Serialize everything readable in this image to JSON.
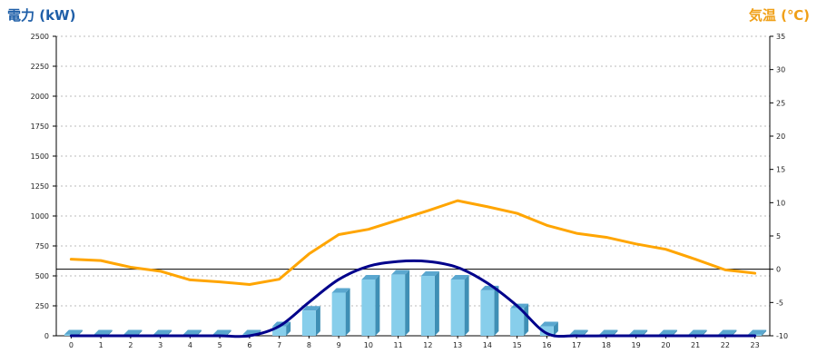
{
  "chart_data": {
    "type": "bar",
    "title": "",
    "y_left_label": "電力 (kW)",
    "y_right_label": "気温 (℃)",
    "categories": [
      "0",
      "1",
      "2",
      "3",
      "4",
      "5",
      "6",
      "7",
      "8",
      "9",
      "10",
      "11",
      "12",
      "13",
      "14",
      "15",
      "16",
      "17",
      "18",
      "19",
      "20",
      "21",
      "22",
      "23"
    ],
    "y_left_ticks": [
      "0",
      "250",
      "500",
      "750",
      "1000",
      "1250",
      "1500",
      "1750",
      "2000",
      "2250",
      "2500"
    ],
    "y_right_ticks": [
      "-10",
      "-5",
      "0",
      "5",
      "10",
      "15",
      "20",
      "25",
      "30",
      "35"
    ],
    "ylim_left": [
      0,
      2500
    ],
    "ylim_right": [
      -10,
      35
    ],
    "grid": true,
    "series": [
      {
        "kind": "bar",
        "axis": "left",
        "color": "#87ceeb",
        "values": [
          0,
          0,
          0,
          0,
          0,
          0,
          0,
          80,
          210,
          360,
          470,
          510,
          500,
          470,
          380,
          230,
          80,
          0,
          0,
          0,
          0,
          0,
          0,
          0
        ]
      },
      {
        "kind": "line",
        "axis": "left",
        "color": "#00008b",
        "values": [
          0,
          0,
          0,
          0,
          0,
          0,
          0,
          80,
          280,
          470,
          580,
          620,
          620,
          570,
          440,
          250,
          20,
          0,
          0,
          0,
          0,
          0,
          0,
          0
        ]
      },
      {
        "kind": "line",
        "axis": "right",
        "color": "#ffa500",
        "values": [
          1.5,
          1.3,
          0.3,
          -0.3,
          -1.6,
          -1.9,
          -2.3,
          -1.5,
          2.3,
          5.2,
          6,
          7.4,
          8.8,
          10.3,
          9.4,
          8.4,
          6.6,
          5.4,
          4.8,
          3.8,
          3,
          1.5,
          -0.1,
          -0.6
        ]
      }
    ]
  }
}
